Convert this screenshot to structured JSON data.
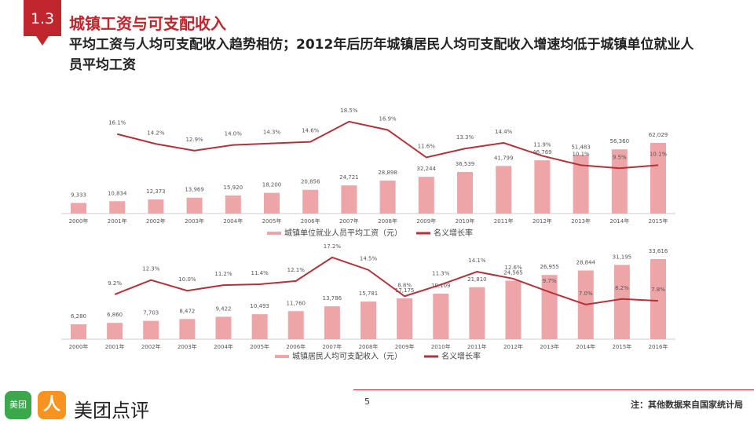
{
  "header": {
    "section": "1.3",
    "title": "城镇工资与可支配收入",
    "subtitle": "平均工资与人均可支配收入趋势相仿；2012年后历年城镇居民人均可支配收入增速均低于城镇单位就业人员平均工资"
  },
  "footer": {
    "page": "5",
    "note": "注：其他数据来自国家统计局",
    "brand": "美团点评",
    "logo_text": "美团",
    "logo_icon": "person-icon"
  },
  "colors": {
    "bar": "#eda5a7",
    "line": "#b3323a",
    "accent": "#c0272d"
  },
  "chart_data": [
    {
      "type": "bar+line",
      "categories": [
        "2000年",
        "2001年",
        "2002年",
        "2003年",
        "2004年",
        "2005年",
        "2006年",
        "2007年",
        "2008年",
        "2009年",
        "2010年",
        "2011年",
        "2012年",
        "2013年",
        "2014年",
        "2015年"
      ],
      "bar_values": [
        9333,
        10834,
        12373,
        13969,
        15920,
        18200,
        20856,
        24721,
        28898,
        32244,
        36539,
        41799,
        46769,
        51483,
        56360,
        62029
      ],
      "bar_labels": [
        "9,333",
        "10,834",
        "12,373",
        "13,969",
        "15,920",
        "18,200",
        "20,856",
        "24,721",
        "28,898",
        "32,244",
        "36,539",
        "41,799",
        "46,769",
        "51,483",
        "56,360",
        "62,029"
      ],
      "line_values": [
        null,
        16.1,
        14.2,
        12.9,
        14.0,
        14.3,
        14.6,
        18.5,
        16.9,
        11.6,
        13.3,
        14.4,
        11.9,
        10.1,
        9.5,
        10.1
      ],
      "line_labels": [
        "",
        "16.1%",
        "14.2%",
        "12.9%",
        "14.0%",
        "14.3%",
        "14.6%",
        "18.5%",
        "16.9%",
        "11.6%",
        "13.3%",
        "14.4%",
        "11.9%",
        "10.1%",
        "9.5%",
        "10.1%"
      ],
      "legend": [
        "城镇单位就业人员平均工资（元）",
        "名义增长率"
      ]
    },
    {
      "type": "bar+line",
      "categories": [
        "2000年",
        "2001年",
        "2002年",
        "2003年",
        "2004年",
        "2005年",
        "2006年",
        "2007年",
        "2008年",
        "2009年",
        "2010年",
        "2011年",
        "2012年",
        "2013年",
        "2014年",
        "2015年",
        "2016年"
      ],
      "bar_values": [
        6280,
        6860,
        7703,
        8472,
        9422,
        10493,
        11760,
        13786,
        15781,
        17175,
        19109,
        21810,
        24565,
        26955,
        28844,
        31195,
        33616
      ],
      "bar_labels": [
        "6,280",
        "6,860",
        "7,703",
        "8,472",
        "9,422",
        "10,493",
        "11,760",
        "13,786",
        "15,781",
        "17,175",
        "19,109",
        "21,810",
        "24,565",
        "26,955",
        "28,844",
        "31,195",
        "33,616"
      ],
      "line_values": [
        null,
        9.2,
        12.3,
        10.0,
        11.2,
        11.4,
        12.1,
        17.2,
        14.5,
        8.8,
        11.3,
        14.1,
        12.6,
        9.7,
        7.0,
        8.2,
        7.8
      ],
      "line_labels": [
        "",
        "9.2%",
        "12.3%",
        "10.0%",
        "11.2%",
        "11.4%",
        "12.1%",
        "17.2%",
        "14.5%",
        "8.8%",
        "11.3%",
        "14.1%",
        "12.6%",
        "9.7%",
        "7.0%",
        "8.2%",
        "7.8%"
      ],
      "legend": [
        "城镇居民人均可支配收入（元）",
        "名义增长率"
      ]
    }
  ]
}
